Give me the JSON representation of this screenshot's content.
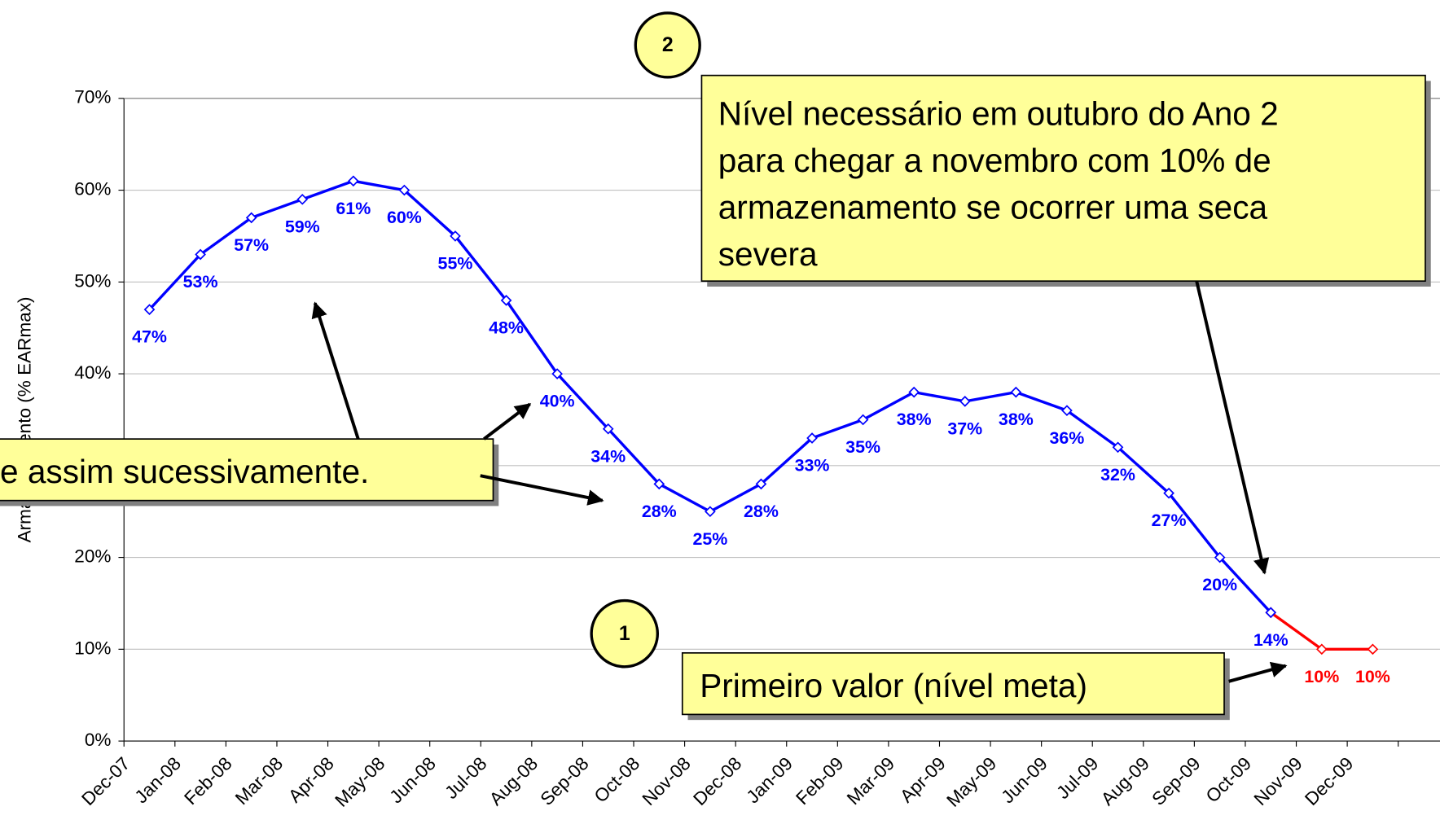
{
  "chart_data": {
    "type": "line",
    "y_label": "Armazenamento (% EARmax)",
    "categories": [
      "Dec-07",
      "Jan-08",
      "Feb-08",
      "Mar-08",
      "Apr-08",
      "May-08",
      "Jun-08",
      "Jul-08",
      "Aug-08",
      "Sep-08",
      "Oct-08",
      "Nov-08",
      "Dec-08",
      "Jan-09",
      "Feb-09",
      "Mar-09",
      "Apr-09",
      "May-09",
      "Jun-09",
      "Jul-09",
      "Aug-09",
      "Sep-09",
      "Oct-09",
      "Nov-09",
      "Dec-09"
    ],
    "series": [
      {
        "name": "Armazenamento",
        "color": "#0000ff",
        "values": [
          47,
          53,
          57,
          59,
          61,
          60,
          55,
          48,
          40,
          34,
          28,
          25,
          28,
          33,
          35,
          38,
          37,
          38,
          36,
          32,
          27,
          20,
          14,
          null,
          null
        ],
        "value_labels": [
          "47%",
          "53%",
          "57%",
          "59%",
          "61%",
          "60%",
          "55%",
          "48%",
          "40%",
          "34%",
          "28%",
          "25%",
          "28%",
          "33%",
          "35%",
          "38%",
          "37%",
          "38%",
          "36%",
          "32%",
          "27%",
          "20%",
          "14%",
          null,
          null
        ]
      },
      {
        "name": "Nível meta",
        "color": "#ff0000",
        "values": [
          null,
          null,
          null,
          null,
          null,
          null,
          null,
          null,
          null,
          null,
          null,
          null,
          null,
          null,
          null,
          null,
          null,
          null,
          null,
          null,
          null,
          null,
          14,
          10,
          10
        ],
        "value_labels": [
          null,
          null,
          null,
          null,
          null,
          null,
          null,
          null,
          null,
          null,
          null,
          null,
          null,
          null,
          null,
          null,
          null,
          null,
          null,
          null,
          null,
          null,
          null,
          "10%",
          "10%"
        ]
      }
    ],
    "ylim": [
      0,
      70
    ],
    "yticks": [
      {
        "value": 0,
        "label": "0%"
      },
      {
        "value": 10,
        "label": "10%"
      },
      {
        "value": 20,
        "label": "20%"
      },
      {
        "value": 30,
        "label": "30%"
      },
      {
        "value": 40,
        "label": "40%"
      },
      {
        "value": 50,
        "label": "50%"
      },
      {
        "value": 60,
        "label": "60%"
      },
      {
        "value": 70,
        "label": "70%"
      }
    ],
    "grid": true,
    "annotations": {
      "callout_sequence": "e assim sucessivamente.",
      "callout_target": [
        "Nível necessário em outubro do Ano 2",
        "para chegar a novembro com 10% de",
        "armazenamento se ocorrer uma seca",
        "severa"
      ],
      "callout_first": "Primeiro valor (nível meta)",
      "circle_1": "1",
      "circle_2": "2"
    }
  }
}
